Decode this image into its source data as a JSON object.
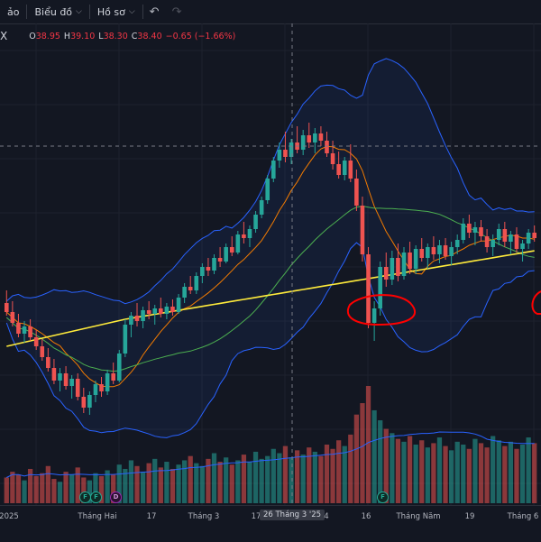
{
  "toolbar": {
    "item0": "ảo",
    "item1": "Biểu đồ",
    "item2": "Hồ sơ",
    "undo_icon": "undo-icon",
    "redo_icon": "redo-icon"
  },
  "legend": {
    "symbol": "X",
    "o_label": "O",
    "o_value": "38.95",
    "h_label": "H",
    "h_value": "39.10",
    "l_label": "L",
    "l_value": "38.30",
    "c_label": "C",
    "c_value": "38.40",
    "change": "−0.65 (−1.66%)"
  },
  "colors": {
    "background": "#131722",
    "up": "#26a69a",
    "down": "#ef5350",
    "bollinger": "#2962ff",
    "ma_orange": "#f57c00",
    "ma_yellow": "#ffeb3b",
    "ma_green": "#4caf50",
    "annotation": "#ff0000"
  },
  "xaxis": {
    "labels": [
      "2025",
      "Tháng Hai",
      "17",
      "Tháng 3",
      "17",
      "4",
      "16",
      "Tháng Năm",
      "19",
      "Tháng 6"
    ],
    "crosshair_label": "26 Tháng 3 '25"
  },
  "markers": [
    "F",
    "F",
    "D",
    "F"
  ],
  "chart_data": {
    "type": "candlestick",
    "indicators": [
      "Bollinger Bands",
      "moving averages (orange, green, yellow)",
      "volume"
    ],
    "candles": [
      [
        41.5,
        42.2,
        40.8,
        41.0
      ],
      [
        41.0,
        41.6,
        40.2,
        40.4
      ],
      [
        40.4,
        40.9,
        39.6,
        39.8
      ],
      [
        39.8,
        40.5,
        39.3,
        40.2
      ],
      [
        40.2,
        40.6,
        39.4,
        39.6
      ],
      [
        39.6,
        40.0,
        38.9,
        39.1
      ],
      [
        39.1,
        39.5,
        38.3,
        38.5
      ],
      [
        38.5,
        39.0,
        37.7,
        37.9
      ],
      [
        37.9,
        38.4,
        37.0,
        37.2
      ],
      [
        37.2,
        37.9,
        36.6,
        37.6
      ],
      [
        37.6,
        38.0,
        36.7,
        36.9
      ],
      [
        36.9,
        37.5,
        36.2,
        37.3
      ],
      [
        37.3,
        37.6,
        36.1,
        36.3
      ],
      [
        36.3,
        36.8,
        35.4,
        35.7
      ],
      [
        35.7,
        36.6,
        35.3,
        36.4
      ],
      [
        36.4,
        37.2,
        36.0,
        37.0
      ],
      [
        37.0,
        37.4,
        36.3,
        36.6
      ],
      [
        36.6,
        37.8,
        36.4,
        37.6
      ],
      [
        37.6,
        38.2,
        37.0,
        37.2
      ],
      [
        37.2,
        38.9,
        37.1,
        38.7
      ],
      [
        38.7,
        40.6,
        38.5,
        40.3
      ],
      [
        40.3,
        41.0,
        39.6,
        40.8
      ],
      [
        40.8,
        41.5,
        40.2,
        40.5
      ],
      [
        40.5,
        41.3,
        40.1,
        41.1
      ],
      [
        41.1,
        41.6,
        40.6,
        40.9
      ],
      [
        40.9,
        41.4,
        40.3,
        41.2
      ],
      [
        41.2,
        41.8,
        40.7,
        40.9
      ],
      [
        40.9,
        41.5,
        40.6,
        41.3
      ],
      [
        41.3,
        41.7,
        40.8,
        41.0
      ],
      [
        41.0,
        42.0,
        40.9,
        41.8
      ],
      [
        41.8,
        42.6,
        41.5,
        42.4
      ],
      [
        42.4,
        43.0,
        42.0,
        42.2
      ],
      [
        42.2,
        43.2,
        42.0,
        43.0
      ],
      [
        43.0,
        43.7,
        42.6,
        43.5
      ],
      [
        43.5,
        44.0,
        43.0,
        43.3
      ],
      [
        43.3,
        44.2,
        43.1,
        44.0
      ],
      [
        44.0,
        44.6,
        43.5,
        43.8
      ],
      [
        43.8,
        44.8,
        43.7,
        44.6
      ],
      [
        44.6,
        45.2,
        44.1,
        44.3
      ],
      [
        44.3,
        45.5,
        44.2,
        45.3
      ],
      [
        45.3,
        46.0,
        44.8,
        45.1
      ],
      [
        45.1,
        45.8,
        44.6,
        45.6
      ],
      [
        45.6,
        46.6,
        45.4,
        46.4
      ],
      [
        46.4,
        47.4,
        46.2,
        47.2
      ],
      [
        47.2,
        48.6,
        47.0,
        48.4
      ],
      [
        48.4,
        49.6,
        48.2,
        49.4
      ],
      [
        49.4,
        50.4,
        49.0,
        50.0
      ],
      [
        50.0,
        51.0,
        49.3,
        49.6
      ],
      [
        49.6,
        50.6,
        49.2,
        50.4
      ],
      [
        50.4,
        51.3,
        49.8,
        50.0
      ],
      [
        50.0,
        51.1,
        49.7,
        50.8
      ],
      [
        50.8,
        51.5,
        50.1,
        50.4
      ],
      [
        50.4,
        51.2,
        49.8,
        50.9
      ],
      [
        50.9,
        51.3,
        50.2,
        50.5
      ],
      [
        50.5,
        51.0,
        49.6,
        49.8
      ],
      [
        49.8,
        50.5,
        48.9,
        49.2
      ],
      [
        49.2,
        49.9,
        48.4,
        48.6
      ],
      [
        48.6,
        49.6,
        48.3,
        49.4
      ],
      [
        49.4,
        50.3,
        48.2,
        48.4
      ],
      [
        48.4,
        48.9,
        46.6,
        46.9
      ],
      [
        46.9,
        47.4,
        43.8,
        44.2
      ],
      [
        44.2,
        44.6,
        40.1,
        40.4
      ],
      [
        40.4,
        41.6,
        39.4,
        41.2
      ],
      [
        41.2,
        43.8,
        40.8,
        43.5
      ],
      [
        43.5,
        44.3,
        42.4,
        42.8
      ],
      [
        42.8,
        44.4,
        42.5,
        44.0
      ],
      [
        44.0,
        44.8,
        42.7,
        43.0
      ],
      [
        43.0,
        44.6,
        42.8,
        44.3
      ],
      [
        44.3,
        44.9,
        43.1,
        43.4
      ],
      [
        43.4,
        44.7,
        43.1,
        44.5
      ],
      [
        44.5,
        45.1,
        43.8,
        44.0
      ],
      [
        44.0,
        44.8,
        43.4,
        44.6
      ],
      [
        44.6,
        45.2,
        43.9,
        44.2
      ],
      [
        44.2,
        45.0,
        43.7,
        44.7
      ],
      [
        44.7,
        45.1,
        43.9,
        44.1
      ],
      [
        44.1,
        44.9,
        43.6,
        44.6
      ],
      [
        44.6,
        45.3,
        44.2,
        45.0
      ],
      [
        45.0,
        46.2,
        44.8,
        45.9
      ],
      [
        45.9,
        46.4,
        45.1,
        45.4
      ],
      [
        45.4,
        46.0,
        44.7,
        45.7
      ],
      [
        45.7,
        46.1,
        44.9,
        45.2
      ],
      [
        45.2,
        45.6,
        44.3,
        44.6
      ],
      [
        44.6,
        45.3,
        44.1,
        45.0
      ],
      [
        45.0,
        45.9,
        44.7,
        45.6
      ],
      [
        45.6,
        46.0,
        44.6,
        44.9
      ],
      [
        44.9,
        45.5,
        44.2,
        45.3
      ],
      [
        45.3,
        45.7,
        44.3,
        44.5
      ],
      [
        44.5,
        45.0,
        43.8,
        44.8
      ],
      [
        44.8,
        45.6,
        44.5,
        45.4
      ],
      [
        45.4,
        45.8,
        44.9,
        45.1
      ]
    ],
    "volume": [
      18,
      22,
      20,
      16,
      24,
      19,
      21,
      26,
      17,
      15,
      22,
      20,
      25,
      18,
      16,
      21,
      19,
      23,
      20,
      27,
      24,
      30,
      26,
      22,
      28,
      31,
      25,
      29,
      24,
      27,
      30,
      33,
      28,
      26,
      31,
      35,
      29,
      32,
      27,
      30,
      34,
      29,
      36,
      31,
      33,
      38,
      35,
      40,
      32,
      37,
      34,
      39,
      36,
      33,
      41,
      38,
      44,
      40,
      48,
      62,
      70,
      82,
      65,
      58,
      52,
      49,
      45,
      43,
      47,
      41,
      44,
      39,
      42,
      46,
      40,
      37,
      43,
      41,
      38,
      45,
      42,
      39,
      47,
      44,
      40,
      43,
      38,
      41,
      46,
      42
    ]
  }
}
